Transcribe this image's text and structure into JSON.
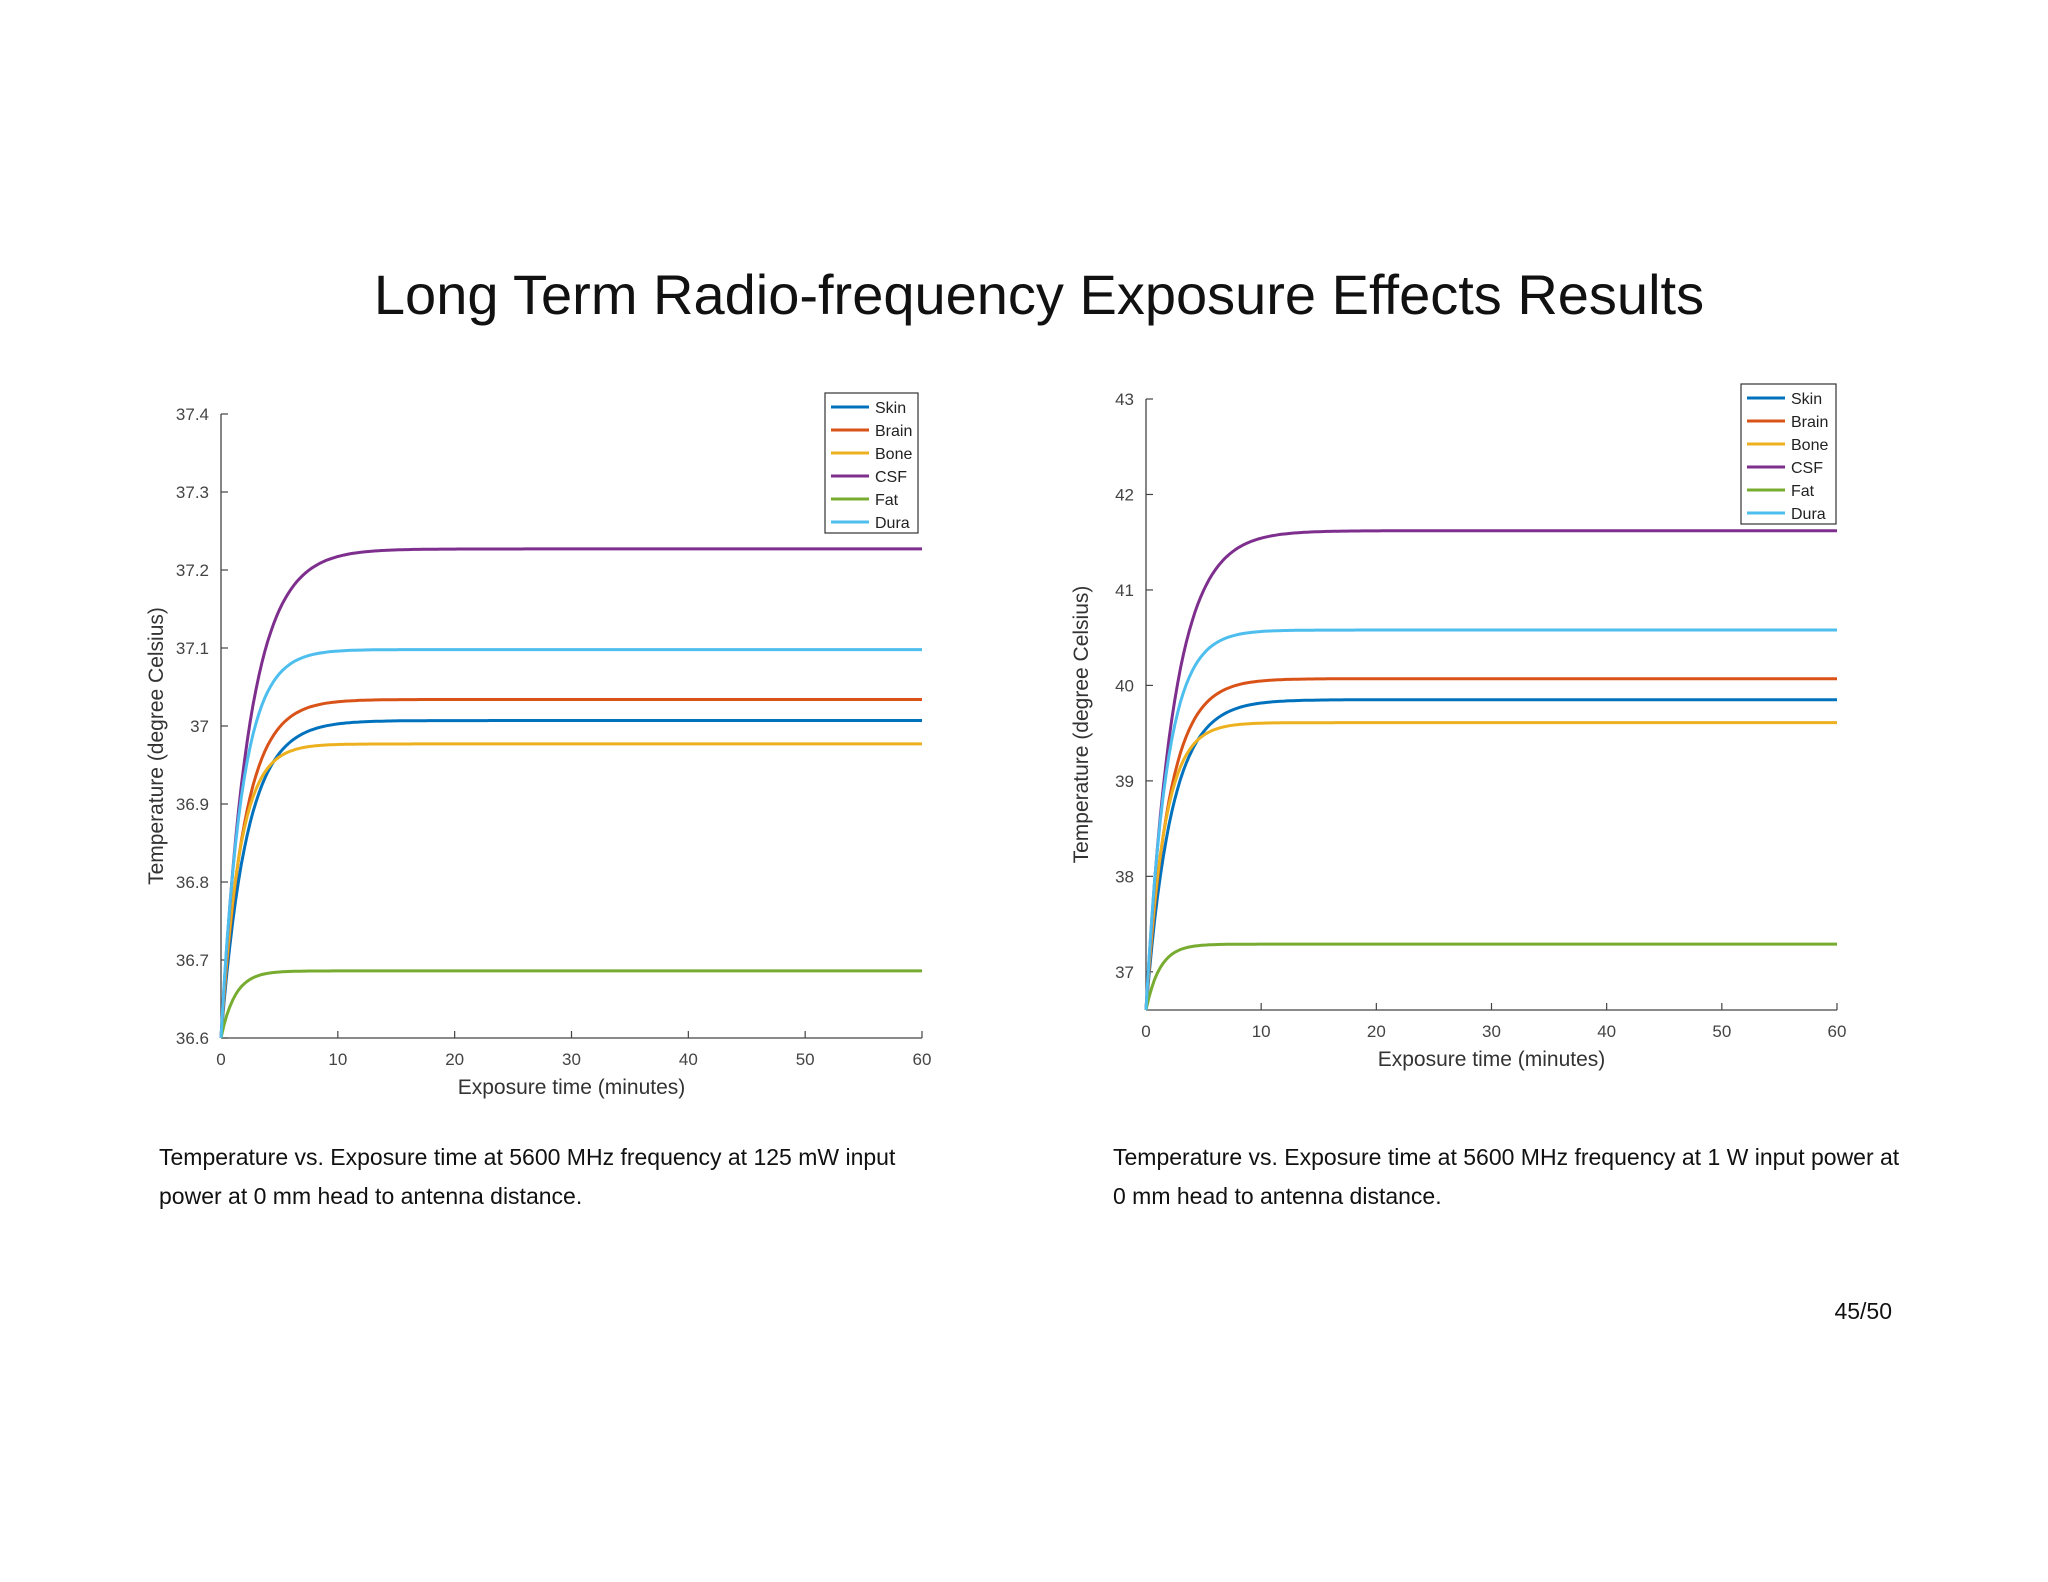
{
  "slide": {
    "title": "Long Term Radio-frequency Exposure Effects Results",
    "page": "45/50"
  },
  "captions": [
    "Temperature vs. Exposure time at 5600 MHz frequency at 125 mW input power at 0 mm head to antenna distance.",
    "Temperature vs. Exposure time at 5600 MHz frequency at 1 W input power at 0 mm head to antenna distance."
  ],
  "chart_data": [
    {
      "type": "line",
      "xlabel": "Exposure time (minutes)",
      "ylabel": "Temperature (degree Celsius)",
      "xlim": [
        0,
        60
      ],
      "ylim": [
        36.6,
        37.4
      ],
      "xticks": [
        "0",
        "10",
        "20",
        "30",
        "40",
        "50",
        "60"
      ],
      "yticks": [
        "36.6",
        "36.7",
        "36.8",
        "36.9",
        "37",
        "37.1",
        "37.2",
        "37.3",
        "37.4"
      ],
      "legend_position": "top-right",
      "x": [
        0,
        1,
        2,
        3,
        4,
        5,
        6,
        7,
        8,
        10,
        12,
        15,
        20,
        30,
        40,
        50,
        60
      ],
      "series": [
        {
          "name": "Skin",
          "color": "#0072BD",
          "start": 36.6,
          "plateau": 37.007,
          "tau": 2.2
        },
        {
          "name": "Brain",
          "color": "#D95319",
          "start": 36.6,
          "plateau": 37.034,
          "tau": 2.0
        },
        {
          "name": "Bone",
          "color": "#EDB120",
          "start": 36.6,
          "plateau": 36.977,
          "tau": 1.6
        },
        {
          "name": "CSF",
          "color": "#7E2F8E",
          "start": 36.6,
          "plateau": 37.227,
          "tau": 2.4
        },
        {
          "name": "Fat",
          "color": "#77AC30",
          "start": 36.6,
          "plateau": 36.686,
          "tau": 1.2
        },
        {
          "name": "Dura",
          "color": "#4DBEEE",
          "start": 36.6,
          "plateau": 37.098,
          "tau": 1.8
        }
      ]
    },
    {
      "type": "line",
      "xlabel": "Exposure time (minutes)",
      "ylabel": "Temperature (degree Celsius)",
      "xlim": [
        0,
        60
      ],
      "ylim": [
        36.6,
        43
      ],
      "xticks": [
        "0",
        "10",
        "20",
        "30",
        "40",
        "50",
        "60"
      ],
      "yticks": [
        "37",
        "38",
        "39",
        "40",
        "41",
        "42",
        "43"
      ],
      "legend_position": "top-right",
      "x": [
        0,
        1,
        2,
        3,
        4,
        5,
        6,
        7,
        8,
        10,
        12,
        15,
        20,
        30,
        40,
        50,
        60
      ],
      "series": [
        {
          "name": "Skin",
          "color": "#0072BD",
          "start": 36.6,
          "plateau": 39.85,
          "tau": 2.2
        },
        {
          "name": "Brain",
          "color": "#D95319",
          "start": 36.6,
          "plateau": 40.07,
          "tau": 2.0
        },
        {
          "name": "Bone",
          "color": "#EDB120",
          "start": 36.6,
          "plateau": 39.61,
          "tau": 1.6
        },
        {
          "name": "CSF",
          "color": "#7E2F8E",
          "start": 36.6,
          "plateau": 41.62,
          "tau": 2.4
        },
        {
          "name": "Fat",
          "color": "#77AC30",
          "start": 36.6,
          "plateau": 37.29,
          "tau": 1.2
        },
        {
          "name": "Dura",
          "color": "#4DBEEE",
          "start": 36.6,
          "plateau": 40.58,
          "tau": 1.8
        }
      ]
    }
  ]
}
